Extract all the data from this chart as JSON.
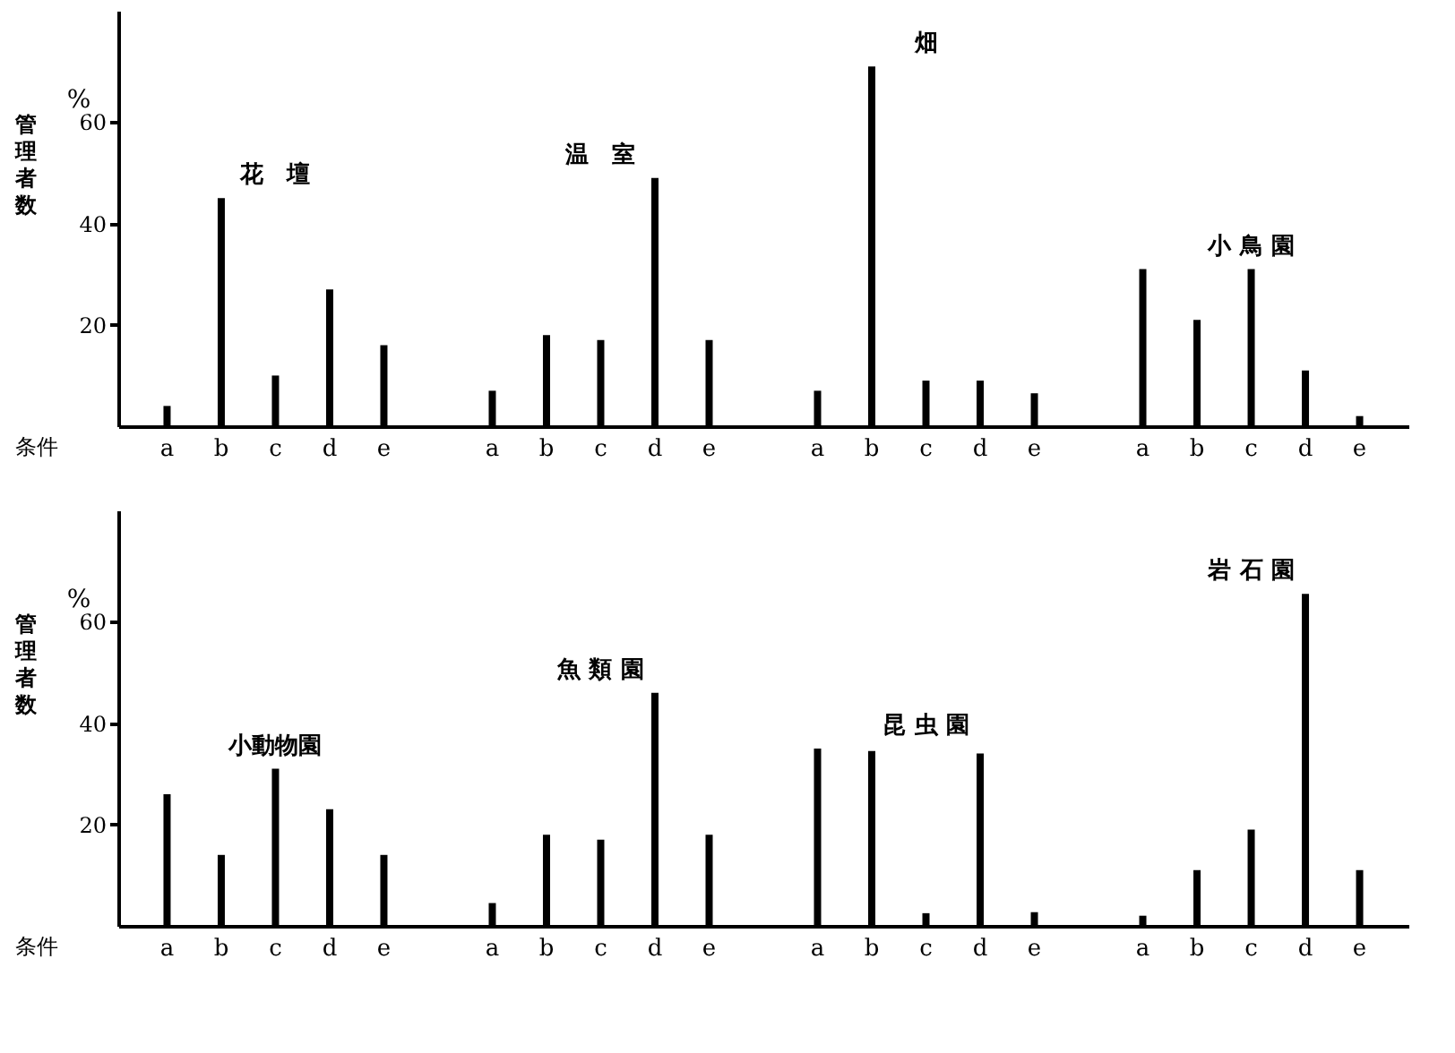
{
  "chart_data": [
    {
      "type": "bar",
      "xlabel": "条件",
      "ylabel": "管理者数",
      "annotations": [
        "%"
      ],
      "categories": [
        "a",
        "b",
        "c",
        "d",
        "e",
        "a",
        "b",
        "c",
        "d",
        "e",
        "a",
        "b",
        "c",
        "d",
        "e",
        "a",
        "b",
        "c",
        "d",
        "e"
      ],
      "ylim": [
        0,
        82
      ],
      "yticks": [
        20,
        40,
        60
      ],
      "series": [
        {
          "name": "花　壇",
          "color": "#000000",
          "values": [
            4,
            45,
            10,
            27,
            16,
            null,
            null,
            null,
            null,
            null,
            null,
            null,
            null,
            null,
            null,
            null,
            null,
            null,
            null,
            null
          ]
        },
        {
          "name": "温　室",
          "color": "#000000",
          "values": [
            null,
            null,
            null,
            null,
            null,
            7,
            18,
            17,
            49,
            17,
            null,
            null,
            null,
            null,
            null,
            null,
            null,
            null,
            null,
            null
          ]
        },
        {
          "name": "畑",
          "color": "#000000",
          "values": [
            null,
            null,
            null,
            null,
            null,
            null,
            null,
            null,
            null,
            null,
            7,
            71,
            9,
            9,
            6.5,
            null,
            null,
            null,
            null,
            null
          ]
        },
        {
          "name": "小 鳥 園",
          "color": "#000000",
          "values": [
            null,
            null,
            null,
            null,
            null,
            null,
            null,
            null,
            null,
            null,
            null,
            null,
            null,
            null,
            null,
            31,
            21,
            31,
            11,
            2
          ]
        }
      ]
    },
    {
      "type": "bar",
      "xlabel": "条件",
      "ylabel": "管理者数",
      "annotations": [
        "%"
      ],
      "categories": [
        "a",
        "b",
        "c",
        "d",
        "e",
        "a",
        "b",
        "c",
        "d",
        "e",
        "a",
        "b",
        "c",
        "d",
        "e",
        "a",
        "b",
        "c",
        "d",
        "e"
      ],
      "ylim": [
        0,
        82
      ],
      "yticks": [
        20,
        40,
        60
      ],
      "series": [
        {
          "name": "小動物園",
          "color": "#000000",
          "values": [
            26,
            14,
            31,
            23,
            14,
            null,
            null,
            null,
            null,
            null,
            null,
            null,
            null,
            null,
            null,
            null,
            null,
            null,
            null,
            null
          ]
        },
        {
          "name": "魚 類 園",
          "color": "#000000",
          "values": [
            null,
            null,
            null,
            null,
            null,
            4.5,
            18,
            17,
            46,
            18,
            null,
            null,
            null,
            null,
            null,
            null,
            null,
            null,
            null,
            null
          ]
        },
        {
          "name": "昆 虫 園",
          "color": "#000000",
          "values": [
            null,
            null,
            null,
            null,
            null,
            null,
            null,
            null,
            null,
            null,
            35,
            34.5,
            2.5,
            34,
            2.7,
            null,
            null,
            null,
            null,
            null
          ]
        },
        {
          "name": "岩 石 園",
          "color": "#000000",
          "values": [
            null,
            null,
            null,
            null,
            null,
            null,
            null,
            null,
            null,
            null,
            null,
            null,
            null,
            null,
            null,
            2,
            11,
            19,
            65.5,
            11
          ]
        }
      ]
    }
  ]
}
